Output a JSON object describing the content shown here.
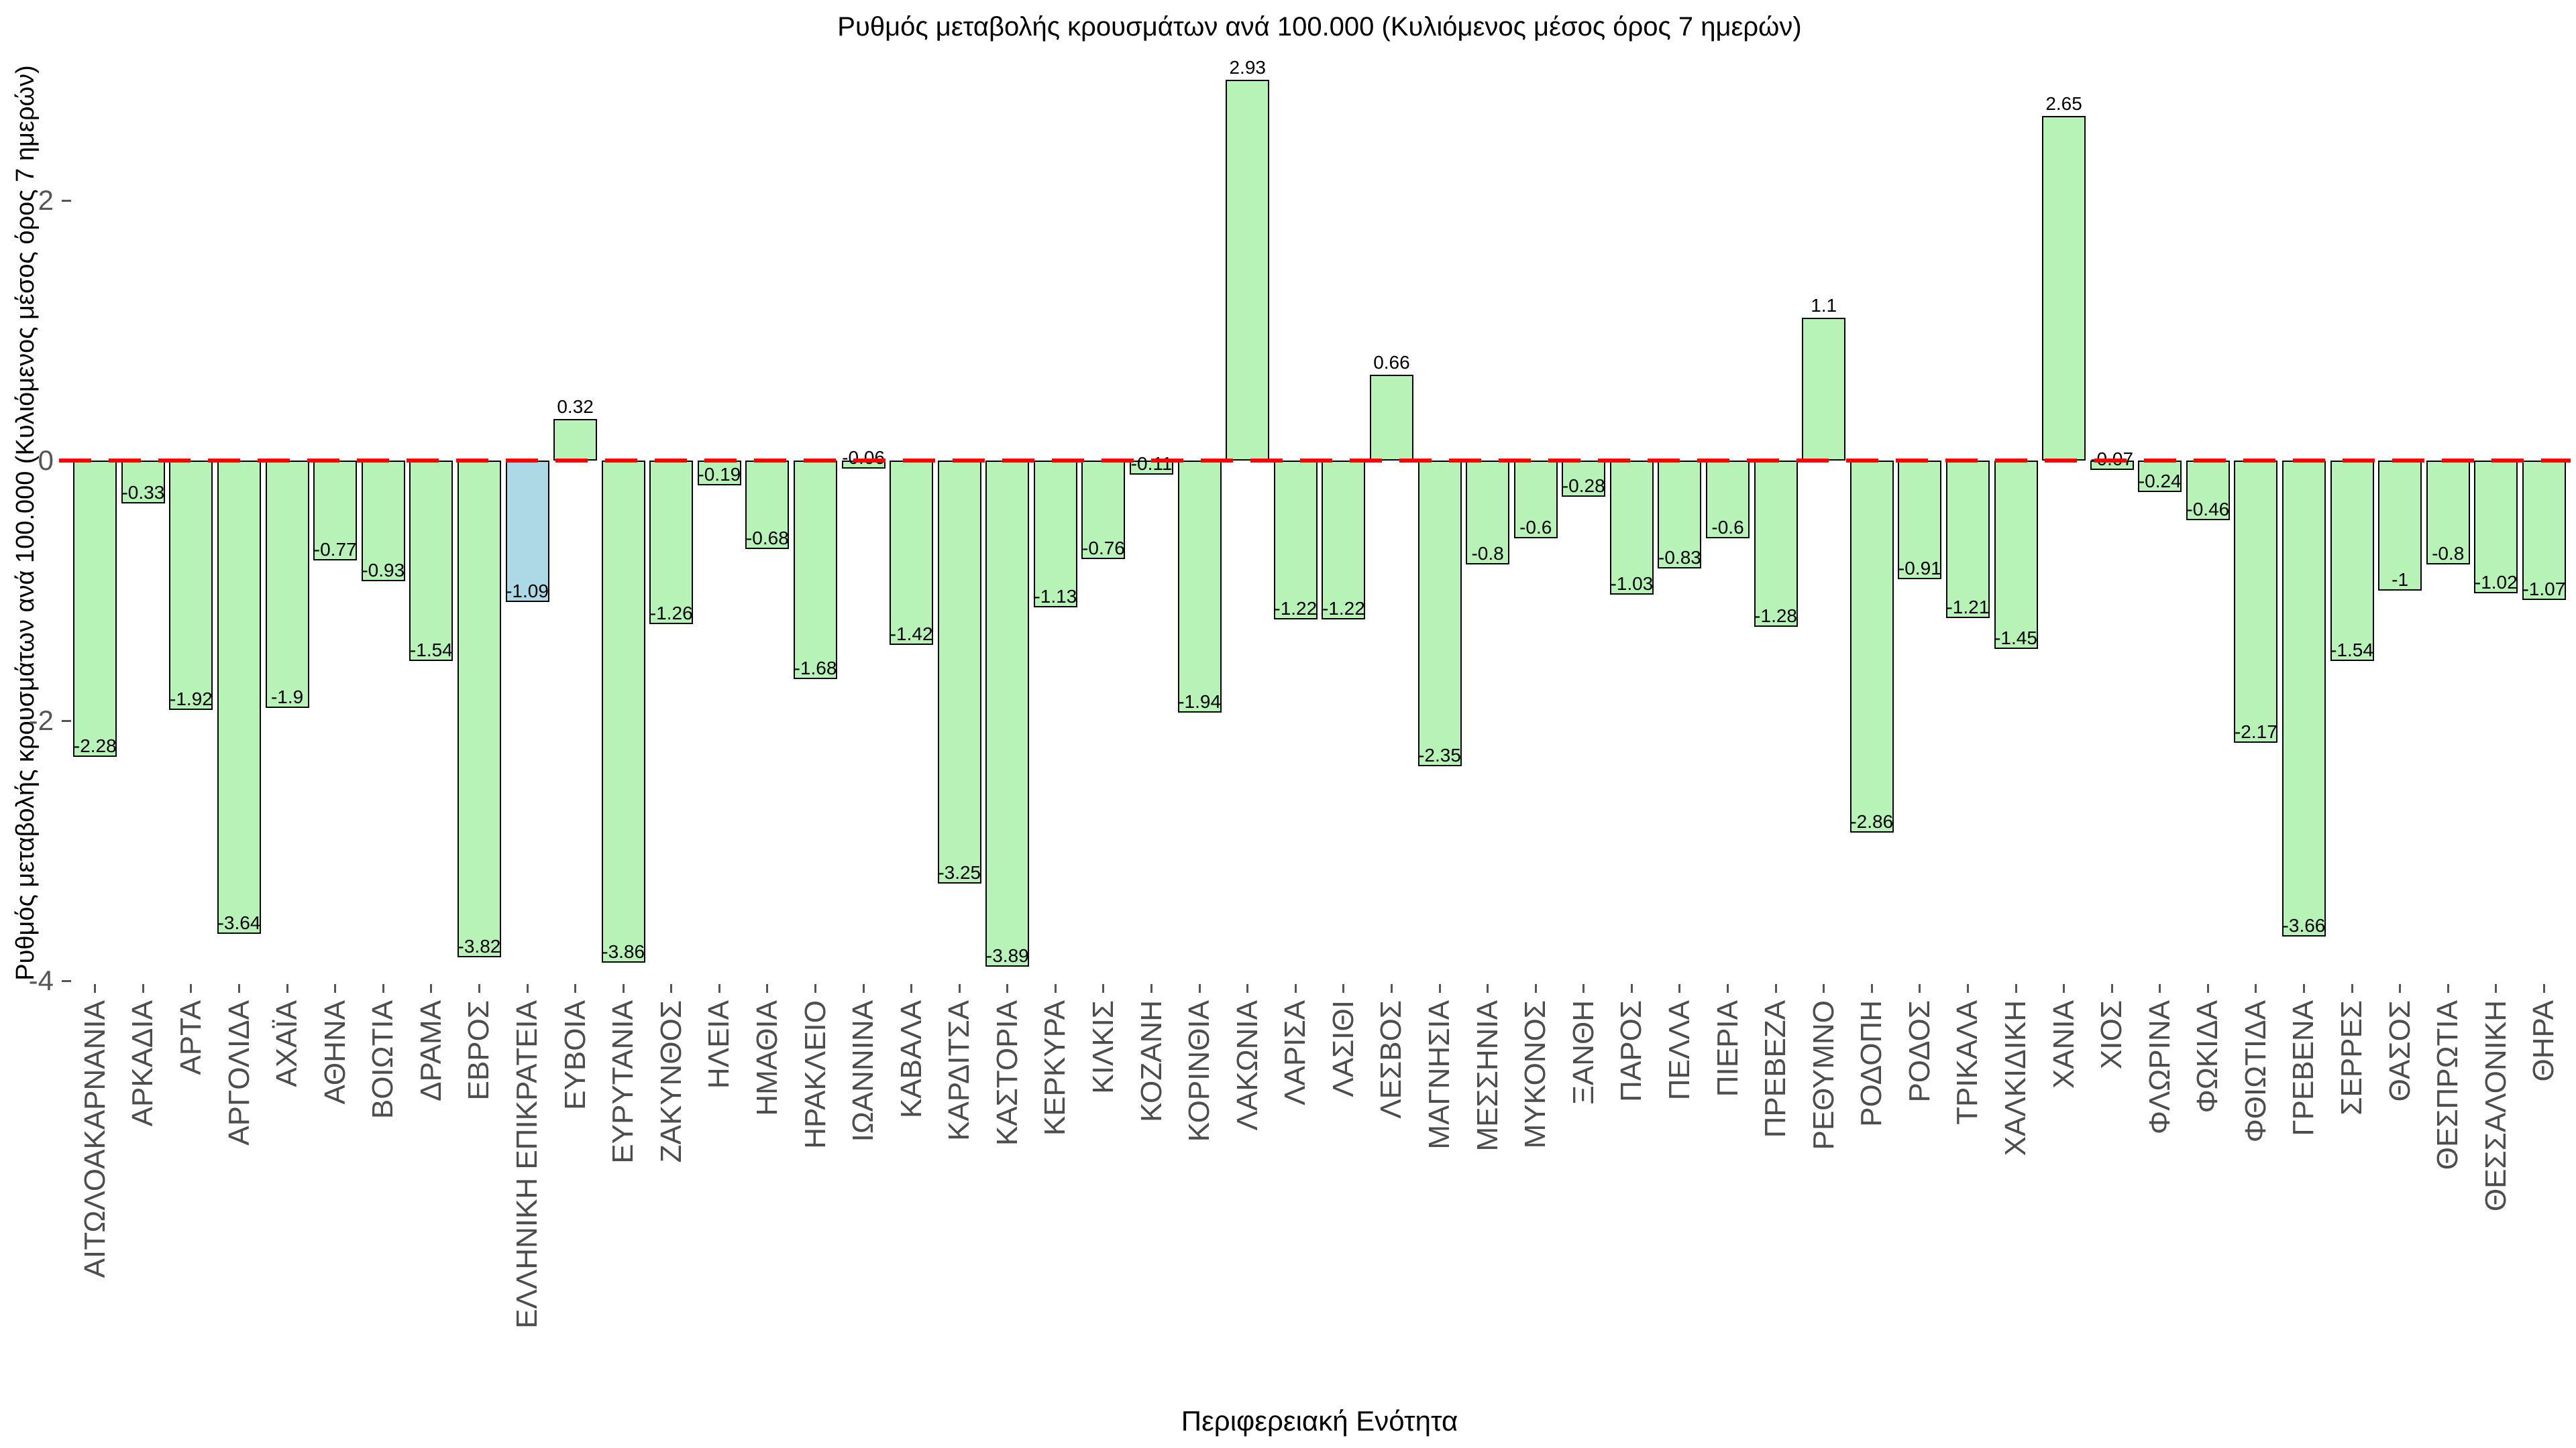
{
  "title": "Ρυθμός μεταβολής κρουσμάτων ανά 100.000 (Κυλιόμενος μέσος όρος 7 ημερών)",
  "ylabel": "Ρυθμός μεταβολής κρουσμάτων ανά 100.000 (Κυλιόμενος μέσος όρος 7 ημερών)",
  "xlabel": "Περιφερειακή Ενότητα",
  "chart_data": {
    "type": "bar",
    "categories": [
      "ΑΙΤΩΛΟΑΚΑΡΝΑΝΙΑ",
      "ΑΡΚΑΔΙΑ",
      "ΑΡΤΑ",
      "ΑΡΓΟΛΙΔΑ",
      "ΑΧΑΪΑ",
      "ΑΘΗΝΑ",
      "ΒΟΙΩΤΙΑ",
      "ΔΡΑΜΑ",
      "ΕΒΡΟΣ",
      "ΕΛΛΗΝΙΚΗ ΕΠΙΚΡΑΤΕΙΑ",
      "ΕΥΒΟΙΑ",
      "ΕΥΡΥΤΑΝΙΑ",
      "ΖΑΚΥΝΘΟΣ",
      "ΗΛΕΙΑ",
      "ΗΜΑΘΙΑ",
      "ΗΡΑΚΛΕΙΟ",
      "ΙΩΑΝΝΙΝΑ",
      "ΚΑΒΑΛΑ",
      "ΚΑΡΔΙΤΣΑ",
      "ΚΑΣΤΟΡΙΑ",
      "ΚΕΡΚΥΡΑ",
      "ΚΙΛΚΙΣ",
      "ΚΟΖΑΝΗ",
      "ΚΟΡΙΝΘΙΑ",
      "ΛΑΚΩΝΙΑ",
      "ΛΑΡΙΣΑ",
      "ΛΑΣΙΘΙ",
      "ΛΕΣΒΟΣ",
      "ΜΑΓΝΗΣΙΑ",
      "ΜΕΣΣΗΝΙΑ",
      "ΜΥΚΟΝΟΣ",
      "ΞΑΝΘΗ",
      "ΠΑΡΟΣ",
      "ΠΕΛΛΑ",
      "ΠΙΕΡΙΑ",
      "ΠΡΕΒΕΖΑ",
      "ΡΕΘΥΜΝΟ",
      "ΡΟΔΟΠΗ",
      "ΡΟΔΟΣ",
      "ΤΡΙΚΑΛΑ",
      "ΧΑΛΚΙΔΙΚΗ",
      "ΧΑΝΙΑ",
      "ΧΙΟΣ",
      "ΦΛΩΡΙΝΑ",
      "ΦΩΚΙΔΑ",
      "ΦΘΙΩΤΙΔΑ",
      "ΓΡΕΒΕΝΑ",
      "ΣΕΡΡΕΣ",
      "ΘΑΣΟΣ",
      "ΘΕΣΠΡΩΤΙΑ",
      "ΘΕΣΣΑΛΟΝΙΚΗ",
      "ΘΗΡΑ"
    ],
    "values": [
      -2.28,
      -0.33,
      -1.92,
      -3.64,
      -1.9,
      -0.77,
      -0.93,
      -1.54,
      -3.82,
      -1.09,
      0.32,
      -3.86,
      -1.26,
      -0.19,
      -0.68,
      -1.68,
      -0.06,
      -1.42,
      -3.25,
      -3.89,
      -1.13,
      -0.76,
      -0.11,
      -1.94,
      2.93,
      -1.22,
      -1.22,
      0.66,
      -2.35,
      -0.8,
      -0.6,
      -0.28,
      -1.03,
      -0.83,
      -0.6,
      -1.28,
      1.1,
      -2.86,
      -0.91,
      -1.21,
      -1.45,
      2.65,
      -0.07,
      -0.24,
      -0.46,
      -2.17,
      -3.66,
      -1.54,
      -1,
      -0.8,
      -1.02,
      -1.07
    ],
    "highlight_category": "ΕΛΛΗΝΙΚΗ ΕΠΙΚΡΑΤΕΙΑ",
    "yticks": [
      2,
      0,
      -2,
      -4
    ],
    "ylim": [
      -4.15,
      3.1
    ],
    "zero_line_y": 0,
    "zero_line_style": "dashed",
    "grid": false,
    "legend": null,
    "colors": {
      "bar_fill": "#b7f3b7",
      "highlight_fill": "#add8e6",
      "bar_edge": "#000000",
      "zero_line": "#ff0000",
      "axis_tick_label": "#555555",
      "value_label": "#000000"
    }
  }
}
